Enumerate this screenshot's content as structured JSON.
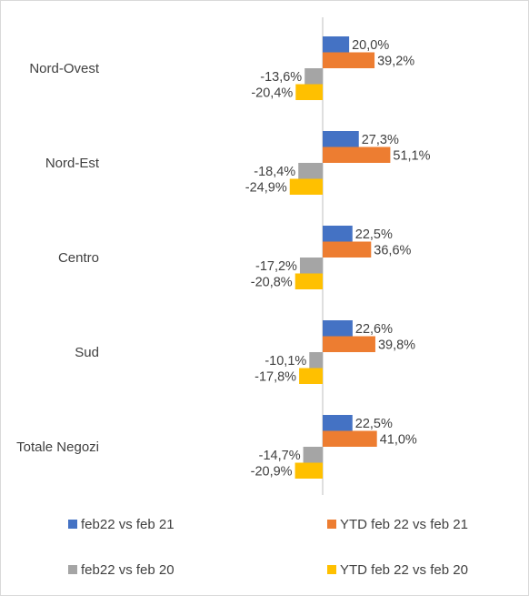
{
  "chart_data": {
    "type": "bar",
    "orientation": "horizontal",
    "categories": [
      "Nord-Ovest",
      "Nord-Est",
      "Centro",
      "Sud",
      "Totale Negozi"
    ],
    "series": [
      {
        "name": "feb22 vs feb 21",
        "color": "#4472C4",
        "values": [
          20.0,
          27.3,
          22.5,
          22.6,
          22.5
        ],
        "labels": [
          "20,0%",
          "27,3%",
          "22,5%",
          "22,6%",
          "22,5%"
        ]
      },
      {
        "name": "YTD feb 22 vs feb 21",
        "color": "#ED7D31",
        "values": [
          39.2,
          51.1,
          36.6,
          39.8,
          41.0
        ],
        "labels": [
          "39,2%",
          "51,1%",
          "36,6%",
          "39,8%",
          "41,0%"
        ]
      },
      {
        "name": "feb22 vs feb 20",
        "color": "#A5A5A5",
        "values": [
          -13.6,
          -18.4,
          -17.2,
          -10.1,
          -14.7
        ],
        "labels": [
          "-13,6%",
          "-18,4%",
          "-17,2%",
          "-10,1%",
          "-14,7%"
        ]
      },
      {
        "name": "YTD feb 22 vs feb 20",
        "color": "#FFC000",
        "values": [
          -20.4,
          -24.9,
          -20.8,
          -17.8,
          -20.9
        ],
        "labels": [
          "-20,4%",
          "-24,9%",
          "-20,8%",
          "-17,8%",
          "-20,9%"
        ]
      }
    ],
    "value_unit": "%",
    "xlim": [
      -80,
      80
    ],
    "grid": false,
    "legend_position": "bottom",
    "title": "",
    "xlabel": "",
    "ylabel": ""
  }
}
